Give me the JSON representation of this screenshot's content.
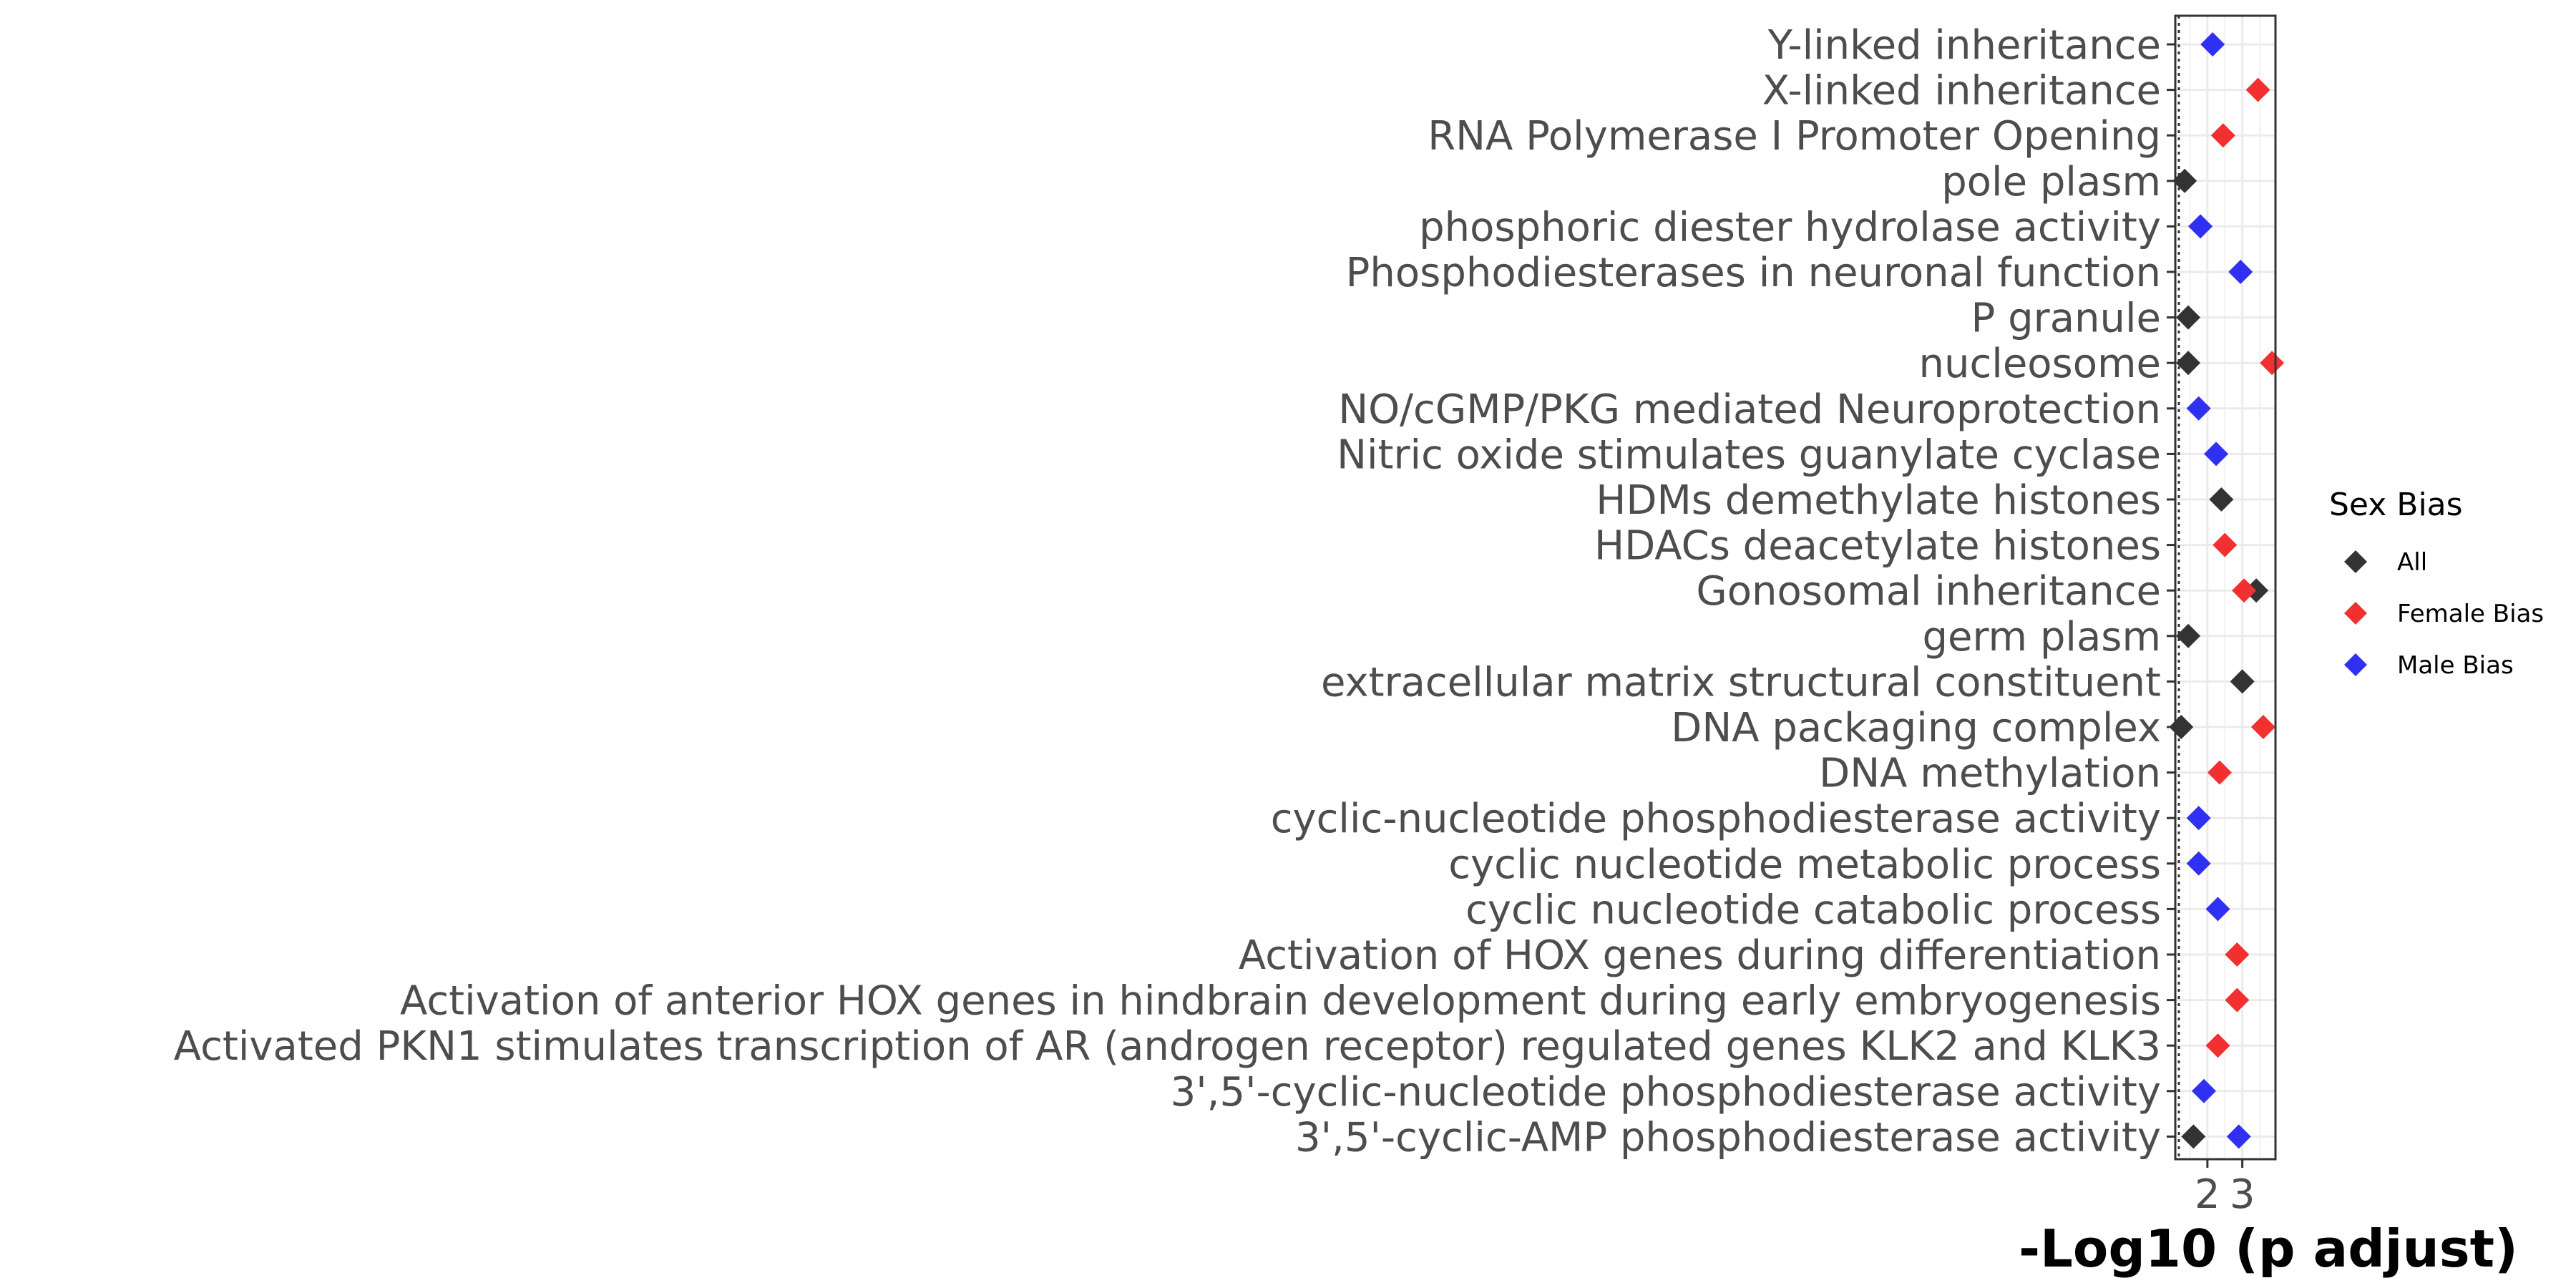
{
  "chart_data": {
    "type": "scatter",
    "title": "",
    "xlabel": "-Log10 (p adjust)",
    "ylabel": "",
    "xlim": [
      1.08,
      3.95
    ],
    "x_ticks": [
      2,
      3
    ],
    "x_tick_labels": [
      "2",
      "3"
    ],
    "grid": true,
    "legend": {
      "title": "Sex Bias",
      "position": "right",
      "entries": [
        "All",
        "Female Bias",
        "Male Bias"
      ]
    },
    "colors": {
      "All": "#333333",
      "Female Bias": "#f23030",
      "Male Bias": "#3030f2"
    },
    "marker": "diamond",
    "categories": [
      "Y-linked inheritance",
      "X-linked inheritance",
      "RNA Polymerase I Promoter Opening",
      "pole plasm",
      "phosphoric diester hydrolase activity",
      "Phosphodiesterases in neuronal function",
      "P granule",
      "nucleosome",
      "NO/cGMP/PKG mediated Neuroprotection",
      "Nitric oxide stimulates guanylate cyclase",
      "HDMs demethylate histones",
      "HDACs deacetylate histones",
      "Gonosomal inheritance",
      "germ plasm",
      "extracellular matrix structural constituent",
      "DNA packaging complex",
      "DNA methylation",
      "cyclic-nucleotide phosphodiesterase activity",
      "cyclic nucleotide metabolic process",
      "cyclic nucleotide catabolic process",
      "Activation of HOX genes during differentiation",
      "Activation of anterior HOX genes in hindbrain development during early embryogenesis",
      "Activated PKN1 stimulates transcription of AR (androgen receptor) regulated genes KLK2 and KLK3",
      "3',5'-cyclic-nucleotide phosphodiesterase activity",
      "3',5'-cyclic-AMP phosphodiesterase activity"
    ],
    "points": [
      {
        "term": "Y-linked inheritance",
        "group": "Male Bias",
        "x": 2.15
      },
      {
        "term": "X-linked inheritance",
        "group": "Female Bias",
        "x": 3.45
      },
      {
        "term": "RNA Polymerase I Promoter Opening",
        "group": "Female Bias",
        "x": 2.45
      },
      {
        "term": "pole plasm",
        "group": "All",
        "x": 1.35
      },
      {
        "term": "phosphoric diester hydrolase activity",
        "group": "Male Bias",
        "x": 1.8
      },
      {
        "term": "Phosphodiesterases in neuronal function",
        "group": "Male Bias",
        "x": 2.95
      },
      {
        "term": "P granule",
        "group": "All",
        "x": 1.45
      },
      {
        "term": "nucleosome",
        "group": "All",
        "x": 1.45
      },
      {
        "term": "nucleosome",
        "group": "Female Bias",
        "x": 3.85
      },
      {
        "term": "NO/cGMP/PKG mediated Neuroprotection",
        "group": "Male Bias",
        "x": 1.75
      },
      {
        "term": "Nitric oxide stimulates guanylate cyclase",
        "group": "Male Bias",
        "x": 2.25
      },
      {
        "term": "HDMs demethylate histones",
        "group": "All",
        "x": 2.4
      },
      {
        "term": "HDACs deacetylate histones",
        "group": "Female Bias",
        "x": 2.5
      },
      {
        "term": "Gonosomal inheritance",
        "group": "Female Bias",
        "x": 3.05
      },
      {
        "term": "Gonosomal inheritance",
        "group": "All",
        "x": 3.4
      },
      {
        "term": "germ plasm",
        "group": "All",
        "x": 1.45
      },
      {
        "term": "extracellular matrix structural constituent",
        "group": "All",
        "x": 3.0
      },
      {
        "term": "DNA packaging complex",
        "group": "All",
        "x": 1.25
      },
      {
        "term": "DNA packaging complex",
        "group": "Female Bias",
        "x": 3.6
      },
      {
        "term": "DNA methylation",
        "group": "Female Bias",
        "x": 2.35
      },
      {
        "term": "cyclic-nucleotide phosphodiesterase activity",
        "group": "Male Bias",
        "x": 1.75
      },
      {
        "term": "cyclic nucleotide metabolic process",
        "group": "Male Bias",
        "x": 1.75
      },
      {
        "term": "cyclic nucleotide catabolic process",
        "group": "Male Bias",
        "x": 2.3
      },
      {
        "term": "Activation of HOX genes during differentiation",
        "group": "Female Bias",
        "x": 2.85
      },
      {
        "term": "Activation of anterior HOX genes in hindbrain development during early embryogenesis",
        "group": "Female Bias",
        "x": 2.85
      },
      {
        "term": "Activated PKN1 stimulates transcription of AR (androgen receptor) regulated genes KLK2 and KLK3",
        "group": "Female Bias",
        "x": 2.3
      },
      {
        "term": "3',5'-cyclic-nucleotide phosphodiesterase activity",
        "group": "Male Bias",
        "x": 1.9
      },
      {
        "term": "3',5'-cyclic-AMP phosphodiesterase activity",
        "group": "All",
        "x": 1.6
      },
      {
        "term": "3',5'-cyclic-AMP phosphodiesterase activity",
        "group": "Male Bias",
        "x": 2.9
      }
    ]
  }
}
